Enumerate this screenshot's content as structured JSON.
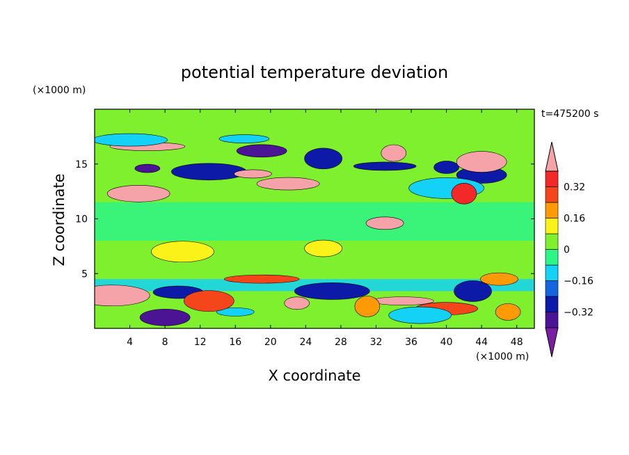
{
  "chart_data": {
    "type": "heatmap",
    "title": "potential temperature deviation",
    "xlabel": "X coordinate",
    "ylabel": "Z coordinate",
    "x_unit": "(×1000 m)",
    "y_unit": "(×1000 m)",
    "time_label": "t=475200 s",
    "xlim": [
      0,
      50
    ],
    "ylim": [
      0,
      20
    ],
    "x_ticks": [
      4,
      8,
      12,
      16,
      20,
      24,
      28,
      32,
      36,
      40,
      44,
      48
    ],
    "y_ticks": [
      5,
      10,
      15
    ],
    "colorbar": {
      "levels": [
        -0.4,
        -0.32,
        -0.24,
        -0.16,
        -0.08,
        0,
        0.08,
        0.16,
        0.24,
        0.32,
        0.4
      ],
      "tick_labels": [
        "0.32",
        "0.16",
        "0",
        "−0.16",
        "−0.32"
      ],
      "tick_values": [
        0.32,
        0.16,
        0,
        -0.16,
        -0.32
      ],
      "colors_low_to_high": [
        "#7a1fa2",
        "#4b1495",
        "#0d1aa8",
        "#1565e0",
        "#14d2f5",
        "#2ef587",
        "#7ef02e",
        "#fbf21a",
        "#fd9a06",
        "#f5461b",
        "#f32828",
        "#f5a3a8"
      ]
    },
    "features": [
      {
        "x": 6,
        "z": 14.6,
        "value": -0.4
      },
      {
        "x": 19,
        "z": 16.2,
        "value": -0.4
      },
      {
        "x": 13,
        "z": 14.3,
        "value": -0.32
      },
      {
        "x": 26,
        "z": 15.5,
        "value": -0.32
      },
      {
        "x": 33,
        "z": 14.8,
        "value": -0.32
      },
      {
        "x": 40,
        "z": 14.7,
        "value": -0.32
      },
      {
        "x": 44,
        "z": 14.0,
        "value": -0.32
      },
      {
        "x": 40,
        "z": 12.8,
        "value": -0.16
      },
      {
        "x": 18,
        "z": 14.1,
        "value": 0.4
      },
      {
        "x": 22,
        "z": 13.2,
        "value": 0.4
      },
      {
        "x": 34,
        "z": 16.0,
        "value": 0.4
      },
      {
        "x": 44,
        "z": 15.2,
        "value": 0.4
      },
      {
        "x": 6,
        "z": 16.6,
        "value": 0.4
      },
      {
        "x": 33,
        "z": 9.6,
        "value": 0.4
      },
      {
        "x": 5,
        "z": 12.3,
        "value": 0.4
      },
      {
        "x": 42,
        "z": 12.3,
        "value": 0.32
      },
      {
        "x": 17,
        "z": 17.3,
        "value": -0.16
      },
      {
        "x": 4,
        "z": 17.2,
        "value": -0.16
      },
      {
        "x": 26,
        "z": 7.3,
        "value": 0.08
      },
      {
        "x": 10,
        "z": 7.0,
        "value": 0.08
      },
      {
        "x": 4,
        "z": 3.3,
        "value": -0.32
      },
      {
        "x": 9.5,
        "z": 3.3,
        "value": -0.32
      },
      {
        "x": 27,
        "z": 3.4,
        "value": -0.32
      },
      {
        "x": 43,
        "z": 3.4,
        "value": -0.32
      },
      {
        "x": 35,
        "z": 2.5,
        "value": 0.4
      },
      {
        "x": 23,
        "z": 2.3,
        "value": 0.4
      },
      {
        "x": 8,
        "z": 1.0,
        "value": -0.4
      },
      {
        "x": 2,
        "z": 3.0,
        "value": 0.4
      },
      {
        "x": 16,
        "z": 1.5,
        "value": -0.16
      },
      {
        "x": 40,
        "z": 1.8,
        "value": 0.24
      },
      {
        "x": 47,
        "z": 1.5,
        "value": 0.16
      },
      {
        "x": 13,
        "z": 2.5,
        "value": 0.24
      },
      {
        "x": 19,
        "z": 4.5,
        "value": 0.24
      },
      {
        "x": 46,
        "z": 4.5,
        "value": 0.16
      },
      {
        "x": 37,
        "z": 1.2,
        "value": -0.16
      },
      {
        "x": 31,
        "z": 2.0,
        "value": 0.16
      }
    ]
  }
}
